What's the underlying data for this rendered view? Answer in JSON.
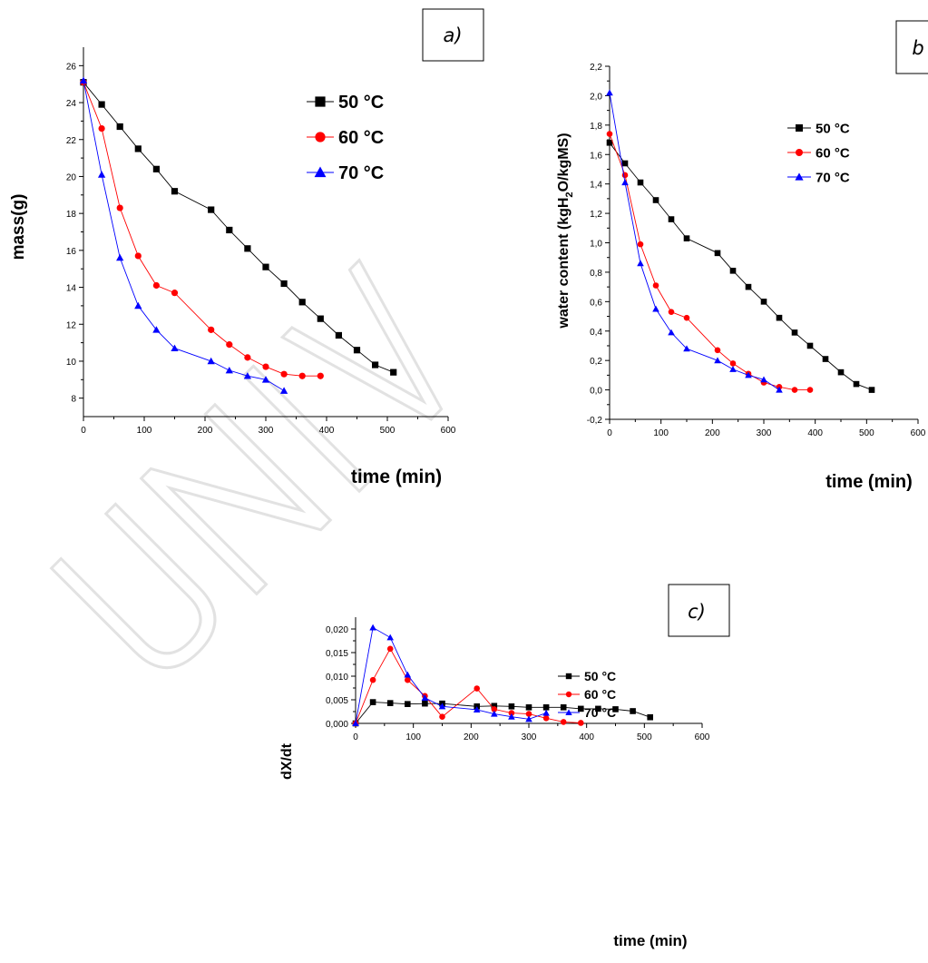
{
  "colors": {
    "50 °C": "#000000",
    "60 °C": "#ff0000",
    "70 °C": "#0000ff"
  },
  "watermark_icon": "diagonal-outlined-letters-watermark",
  "chart_data": [
    {
      "id": "a",
      "panel_label": "a)",
      "type": "line",
      "xlabel": "time (min)",
      "ylabel": "mass(g)",
      "xlim": [
        0,
        600
      ],
      "ylim": [
        7,
        27
      ],
      "xticks": [
        0,
        100,
        200,
        300,
        400,
        500,
        600
      ],
      "xtick_labels": [
        "0",
        "100",
        "200",
        "300",
        "400",
        "500",
        "600"
      ],
      "yticks": [
        8,
        10,
        12,
        14,
        16,
        18,
        20,
        22,
        24,
        26
      ],
      "ytick_labels": [
        "8",
        "10",
        "12",
        "14",
        "16",
        "18",
        "20",
        "22",
        "24",
        "26"
      ],
      "series": [
        {
          "name": "50 °C",
          "marker": "square",
          "x": [
            0,
            30,
            60,
            90,
            120,
            150,
            210,
            240,
            270,
            300,
            330,
            360,
            390,
            420,
            450,
            480,
            510
          ],
          "y": [
            25.1,
            23.9,
            22.7,
            21.5,
            20.4,
            19.2,
            18.2,
            17.1,
            16.1,
            15.1,
            14.2,
            13.2,
            12.3,
            11.4,
            10.6,
            9.8,
            9.4
          ]
        },
        {
          "name": "60 °C",
          "marker": "circle",
          "x": [
            0,
            30,
            60,
            90,
            120,
            150,
            210,
            240,
            270,
            300,
            330,
            360,
            390
          ],
          "y": [
            25.1,
            22.6,
            18.3,
            15.7,
            14.1,
            13.7,
            11.7,
            10.9,
            10.2,
            9.7,
            9.3,
            9.2,
            9.2
          ]
        },
        {
          "name": "70 °C",
          "marker": "triangle",
          "x": [
            0,
            30,
            60,
            90,
            120,
            150,
            210,
            240,
            270,
            300,
            330
          ],
          "y": [
            25.2,
            20.1,
            15.6,
            13.0,
            11.7,
            10.7,
            10.0,
            9.5,
            9.2,
            9.0,
            8.4
          ]
        }
      ]
    },
    {
      "id": "b",
      "panel_label": "b",
      "type": "line",
      "xlabel": "time (min)",
      "ylabel": "water content (kgH",
      "ylabel_sub": "2",
      "ylabel_tail": "O/kgMS)",
      "xlim": [
        0,
        600
      ],
      "ylim": [
        -0.2,
        2.2
      ],
      "xticks": [
        0,
        100,
        200,
        300,
        400,
        500,
        600
      ],
      "xtick_labels": [
        "0",
        "100",
        "200",
        "300",
        "400",
        "500",
        "600"
      ],
      "yticks": [
        -0.2,
        0,
        0.2,
        0.4,
        0.6,
        0.8,
        1.0,
        1.2,
        1.4,
        1.6,
        1.8,
        2.0,
        2.2
      ],
      "ytick_labels": [
        "-0,2",
        "0,0",
        "0,2",
        "0,4",
        "0,6",
        "0,8",
        "1,0",
        "1,2",
        "1,4",
        "1,6",
        "1,8",
        "2,0",
        "2,2"
      ],
      "series": [
        {
          "name": "50 °C",
          "marker": "square",
          "x": [
            0,
            30,
            60,
            90,
            120,
            150,
            210,
            240,
            270,
            300,
            330,
            360,
            390,
            420,
            450,
            480,
            510
          ],
          "y": [
            1.68,
            1.54,
            1.41,
            1.29,
            1.16,
            1.03,
            0.93,
            0.81,
            0.7,
            0.6,
            0.49,
            0.39,
            0.3,
            0.21,
            0.12,
            0.04,
            0.0
          ]
        },
        {
          "name": "60 °C",
          "marker": "circle",
          "x": [
            0,
            30,
            60,
            90,
            120,
            150,
            210,
            240,
            270,
            300,
            330,
            360,
            390
          ],
          "y": [
            1.74,
            1.46,
            0.99,
            0.71,
            0.53,
            0.49,
            0.27,
            0.18,
            0.11,
            0.05,
            0.02,
            0.0,
            0.0
          ]
        },
        {
          "name": "70 °C",
          "marker": "triangle",
          "x": [
            0,
            30,
            60,
            90,
            120,
            150,
            210,
            240,
            270,
            300,
            330
          ],
          "y": [
            2.02,
            1.41,
            0.86,
            0.55,
            0.39,
            0.28,
            0.2,
            0.14,
            0.1,
            0.07,
            0.0
          ]
        }
      ]
    },
    {
      "id": "c",
      "panel_label": "c)",
      "type": "line",
      "xlabel": "time (min)",
      "ylabel": "dX/dt",
      "xlim": [
        0,
        600
      ],
      "ylim": [
        0,
        0.0225
      ],
      "xticks": [
        0,
        100,
        200,
        300,
        400,
        500,
        600
      ],
      "xtick_labels": [
        "0",
        "100",
        "200",
        "300",
        "400",
        "500",
        "600"
      ],
      "yticks": [
        0,
        0.005,
        0.01,
        0.015,
        0.02
      ],
      "ytick_labels": [
        "0,000",
        "0,005",
        "0,010",
        "0,015",
        "0,020"
      ],
      "series": [
        {
          "name": "50 °C",
          "marker": "square",
          "x": [
            0,
            30,
            60,
            90,
            120,
            150,
            210,
            240,
            270,
            300,
            330,
            360,
            390,
            420,
            450,
            480,
            510
          ],
          "y": [
            0.0,
            0.0045,
            0.0043,
            0.0041,
            0.0042,
            0.0042,
            0.0036,
            0.0037,
            0.0036,
            0.0034,
            0.0034,
            0.0034,
            0.0031,
            0.0031,
            0.003,
            0.0026,
            0.0013
          ]
        },
        {
          "name": "60 °C",
          "marker": "circle",
          "x": [
            0,
            30,
            60,
            90,
            120,
            150,
            210,
            240,
            270,
            300,
            330,
            360,
            390
          ],
          "y": [
            0.0,
            0.0092,
            0.0158,
            0.0092,
            0.0058,
            0.0014,
            0.0074,
            0.003,
            0.0022,
            0.002,
            0.0011,
            0.0003,
            0.0001
          ]
        },
        {
          "name": "70 °C",
          "marker": "triangle",
          "x": [
            0,
            30,
            60,
            90,
            120,
            150,
            210,
            240,
            270,
            300,
            330
          ],
          "y": [
            0.0,
            0.0203,
            0.0182,
            0.0103,
            0.0054,
            0.0036,
            0.0029,
            0.002,
            0.0014,
            0.0009,
            0.0022
          ]
        }
      ]
    }
  ]
}
